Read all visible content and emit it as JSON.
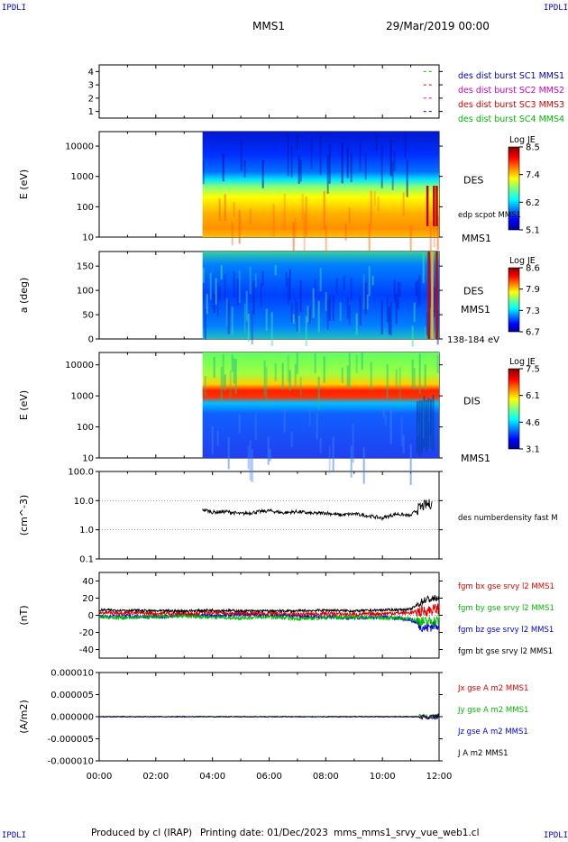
{
  "header": {
    "corner_tl": "IPDLI",
    "corner_tr": "IPDLI",
    "corner_bl": "IPDLI",
    "corner_br": "IPDLI",
    "spacecraft": "MMS1",
    "date": "29/Mar/2019 00:00"
  },
  "footer": {
    "produced": "Produced by cl (IRAP)",
    "printing": "Printing date: 01/Dec/2023",
    "file": "mms_mms1_srvy_vue_web1.cl"
  },
  "colors": {
    "mms1": "#0000cc",
    "mms2": "#cc00cc",
    "mms3": "#dd0000",
    "mms4": "#00bb00",
    "bx": "#dd0000",
    "by": "#00bb00",
    "bz": "#0000dd",
    "bt": "#000000",
    "corner": "#0000cc"
  },
  "chart_data": [
    {
      "type": "line",
      "panel": "burst",
      "ylim": [
        0.5,
        4.5
      ],
      "yticks": [
        "1",
        "2",
        "3",
        "4"
      ],
      "series": [
        {
          "name": "des dist burst SC1 MMS1",
          "color": "#0000cc",
          "level": 1
        },
        {
          "name": "des dist burst SC2 MMS2",
          "color": "#cc00cc",
          "level": 2
        },
        {
          "name": "des dist burst SC3 MMS3",
          "color": "#dd0000",
          "level": 3
        },
        {
          "name": "des dist burst SC4 MMS4",
          "color": "#00bb00",
          "level": 4
        }
      ]
    },
    {
      "type": "heatmap",
      "panel": "des-energy",
      "ylabel": "E (eV)",
      "yscale": "log",
      "ylim": [
        10,
        30000
      ],
      "yticks": [
        "10",
        "100",
        "1000",
        "10000"
      ],
      "data_start_hour": 3.65,
      "label_right": "DES",
      "sub_label": "edp scpot MMS1",
      "sc_label": "MMS1",
      "colorbar": {
        "title": "Log JE",
        "ticks": [
          "8.5",
          "7.4",
          "6.2",
          "5.1"
        ],
        "range": [
          5.1,
          8.5
        ]
      }
    },
    {
      "type": "heatmap",
      "panel": "des-pitch",
      "ylabel": "a (deg)",
      "ylim": [
        0,
        180
      ],
      "yticks": [
        "0",
        "50",
        "100",
        "150"
      ],
      "data_start_hour": 3.65,
      "label_right": "DES",
      "sc_label": "MMS1",
      "energy_range": "138-184 eV",
      "colorbar": {
        "title": "Log JE",
        "ticks": [
          "8.6",
          "7.9",
          "7.3",
          "6.7"
        ],
        "range": [
          6.7,
          8.6
        ]
      }
    },
    {
      "type": "heatmap",
      "panel": "dis-energy",
      "ylabel": "E (eV)",
      "yscale": "log",
      "ylim": [
        10,
        25000
      ],
      "yticks": [
        "10",
        "100",
        "1000",
        "10000"
      ],
      "data_start_hour": 3.65,
      "label_right": "DIS",
      "sc_label": "MMS1",
      "colorbar": {
        "title": "Log JE",
        "ticks": [
          "7.5",
          "6.1",
          "4.6",
          "3.1"
        ],
        "range": [
          3.1,
          7.5
        ]
      }
    },
    {
      "type": "line",
      "panel": "density",
      "ylabel": "(cm^-3)",
      "yscale": "log",
      "ylim": [
        0.1,
        100
      ],
      "yticks": [
        "0.1",
        "1.0",
        "10.0",
        "100.0"
      ],
      "series": [
        {
          "name": "des numberdensity fast M",
          "color": "#000000",
          "x": [
            3.65,
            4.0,
            4.5,
            5.0,
            5.5,
            6.0,
            6.5,
            7.0,
            7.5,
            8.0,
            8.5,
            9.0,
            9.5,
            10.0,
            10.5,
            11.0,
            11.5,
            11.75
          ],
          "y": [
            5.0,
            4.0,
            4.2,
            3.5,
            4.0,
            4.5,
            3.8,
            4.2,
            3.6,
            3.8,
            3.2,
            3.5,
            3.0,
            2.5,
            3.5,
            3.0,
            7.0,
            8.0
          ]
        }
      ]
    },
    {
      "type": "line",
      "panel": "magnetic-field",
      "ylabel": "(nT)",
      "ylim": [
        -50,
        50
      ],
      "yticks": [
        "-40",
        "-20",
        "0",
        "20",
        "40"
      ],
      "series": [
        {
          "name": "fgm bx gse srvy l2 MMS1",
          "color": "#dd0000",
          "x": [
            0,
            1,
            2,
            3,
            4,
            5,
            6,
            7,
            8,
            9,
            10,
            11,
            11.5,
            12
          ],
          "y": [
            3,
            3,
            2,
            2,
            3,
            2,
            2,
            1,
            2,
            1,
            2,
            3,
            5,
            8
          ]
        },
        {
          "name": "fgm by gse srvy l2 MMS1",
          "color": "#00bb00",
          "x": [
            0,
            1,
            2,
            3,
            4,
            5,
            6,
            7,
            8,
            9,
            10,
            11,
            11.5,
            12
          ],
          "y": [
            -2,
            -3,
            -2,
            -1,
            -2,
            -3,
            -2,
            -4,
            -3,
            -2,
            -3,
            -4,
            -8,
            -6
          ]
        },
        {
          "name": "fgm bz gse srvy l2 MMS1",
          "color": "#0000dd",
          "x": [
            0,
            1,
            2,
            3,
            4,
            5,
            6,
            7,
            8,
            9,
            10,
            11,
            11.5,
            12
          ],
          "y": [
            -1,
            -1,
            -2,
            0,
            -1,
            1,
            0,
            -1,
            -2,
            -3,
            -2,
            -5,
            -15,
            -10
          ]
        },
        {
          "name": "fgm bt gse srvy l2 MMS1",
          "color": "#000000",
          "x": [
            0,
            1,
            2,
            3,
            4,
            5,
            6,
            7,
            8,
            9,
            10,
            11,
            11.5,
            12
          ],
          "y": [
            6,
            6,
            5,
            5,
            6,
            5,
            5,
            5,
            6,
            5,
            6,
            7,
            18,
            20
          ]
        }
      ]
    },
    {
      "type": "line",
      "panel": "current-density",
      "ylabel": "(A/m2)",
      "ylim": [
        -1e-05,
        1e-05
      ],
      "yticks": [
        "-0.000010",
        "-0.000005",
        "0.000000",
        "0.000005",
        "0.000010"
      ],
      "xlabel": "",
      "xticks": [
        "00:00",
        "02:00",
        "04:00",
        "06:00",
        "08:00",
        "10:00",
        "12:00"
      ],
      "xlim": [
        0,
        12
      ],
      "series": [
        {
          "name": "Jx gse A m2 MMS1",
          "color": "#dd0000",
          "x": [
            0,
            12
          ],
          "y": [
            0,
            0
          ]
        },
        {
          "name": "Jy gse A m2 MMS1",
          "color": "#00bb00",
          "x": [
            0,
            12
          ],
          "y": [
            0,
            0
          ]
        },
        {
          "name": "Jz gse A m2 MMS1",
          "color": "#0000dd",
          "x": [
            0,
            12
          ],
          "y": [
            0,
            0
          ]
        },
        {
          "name": "J A m2 MMS1",
          "color": "#000000",
          "x": [
            0,
            12
          ],
          "y": [
            0,
            0
          ]
        }
      ]
    }
  ]
}
